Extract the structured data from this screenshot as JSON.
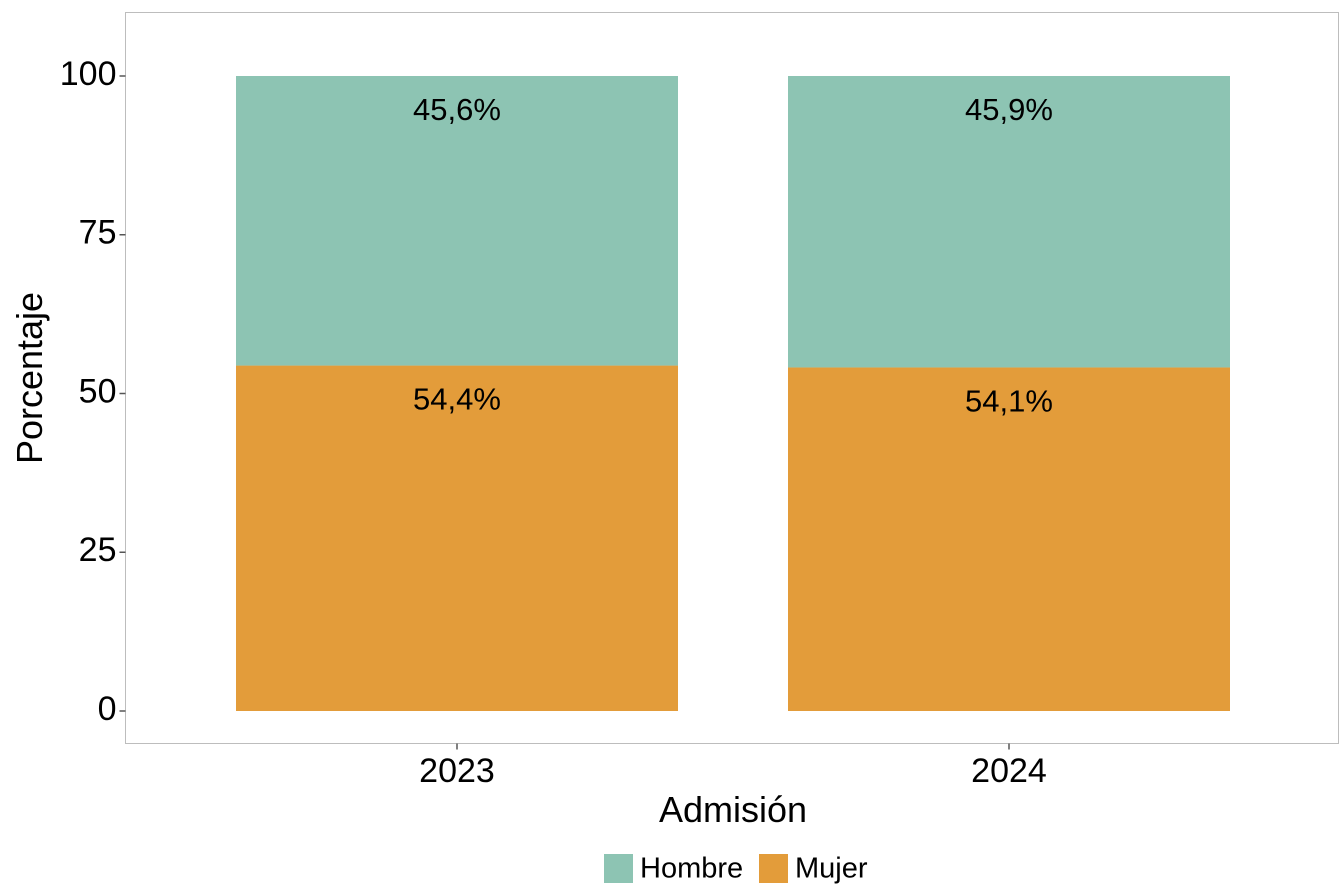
{
  "chart_data": {
    "type": "bar",
    "stacked": true,
    "categories": [
      "2023",
      "2024"
    ],
    "series": [
      {
        "name": "Mujer",
        "values": [
          54.4,
          54.1
        ],
        "labels": [
          "54,4%",
          "54,1%"
        ],
        "color": "#E39C3A"
      },
      {
        "name": "Hombre",
        "values": [
          45.6,
          45.9
        ],
        "labels": [
          "45,6%",
          "45,9%"
        ],
        "color": "#8DC4B3"
      }
    ],
    "xlabel": "Admisión",
    "ylabel": "Porcentaje",
    "ylim": [
      0,
      100
    ],
    "yticks": [
      "0",
      "25",
      "50",
      "75",
      "100"
    ],
    "grid": false,
    "legend": {
      "position": "bottom",
      "items": [
        "Hombre",
        "Mujer"
      ]
    },
    "panel_border_color": "#BDBDBD"
  }
}
